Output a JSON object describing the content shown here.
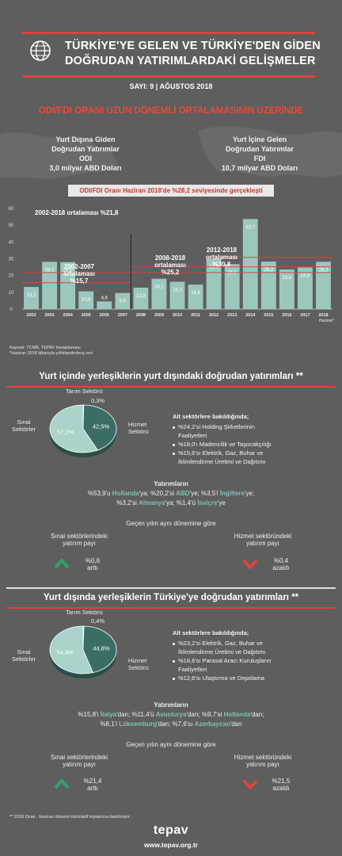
{
  "header": {
    "title_line1": "TÜRKİYE'YE GELEN VE TÜRKİYE'DEN GİDEN",
    "title_line2": "DOĞRUDAN YATIRIMLARDAKİ GELİŞMELER",
    "issue": "SAYI: 9 | AĞUSTOS 2018"
  },
  "intro": {
    "headline": "ODI/FDI ORANI UZUN DÖNEMLİ ORTALAMASININ ÜZERİNDE",
    "odi": [
      "Yurt Dışına Giden",
      "Doğrudan Yatırımlar",
      "ODI",
      "3,0 milyar ABD Doları"
    ],
    "fdi": [
      "Yurt İçine Gelen",
      "Doğrudan Yatırımlar",
      "FDI",
      "10,7 milyar ABD Doları"
    ],
    "ratio_banner": "ODI/FDI Oranı Haziran 2018'de %28,2 seviyesinde gerçekleşti"
  },
  "chart_data": {
    "type": "bar",
    "categories": [
      "2002",
      "2003",
      "2004",
      "2005",
      "2006",
      "2007",
      "2008",
      "2009",
      "2010",
      "2011",
      "2012",
      "2013",
      "2014",
      "2015",
      "2016",
      "2017",
      "2018"
    ],
    "values": [
      13.2,
      28.2,
      28.0,
      10.6,
      4.6,
      9.6,
      12.8,
      18.1,
      16.3,
      14.6,
      29.9,
      26.8,
      53.7,
      28.3,
      23.6,
      24.8,
      28.2
    ],
    "value_labels": [
      "13,2",
      "28,2",
      "28,0",
      "10,6",
      "4,6",
      "9,6",
      "12,8",
      "18,1",
      "16,3",
      "14,6",
      "29,9",
      "26,8",
      "53,7",
      "28,3",
      "23,6",
      "24,8",
      "28,2"
    ],
    "last_category_note": "Haziran*",
    "yticks": [
      "0",
      "10",
      "20",
      "30",
      "40",
      "50",
      "60"
    ],
    "ylim": [
      0,
      60
    ],
    "bar_color": "#9cc7bf",
    "avg_color": "#d9463c",
    "averages": [
      {
        "label": "2002-2018 ortalaması %21,8",
        "value": 21.8,
        "from": 0,
        "to": 16
      },
      {
        "label_line1": "2002-2007",
        "label_line2": "ortalaması",
        "label_line3": "%15,7",
        "value": 15.7,
        "from": 0,
        "to": 5
      },
      {
        "label_line1": "2008-2018",
        "label_line2": "ortalaması",
        "label_line3": "%25,2",
        "value": 25.2,
        "from": 6,
        "to": 16
      },
      {
        "label_line1": "2012-2018",
        "label_line2": "ortalaması",
        "label_line3": "%30,8",
        "value": 30.8,
        "from": 10,
        "to": 16
      }
    ],
    "source": "Kaynak: TCMB, TEPAV hesaplaması",
    "note": "*Haziran 2018 itibarıyla yıllıklandırılmış veri"
  },
  "outward": {
    "title": "Yurt içinde yerleşiklerin yurt dışındaki doğrudan yatırımları **",
    "pie": {
      "slices": [
        {
          "name": "Tarım Sektörü",
          "value": 0.3,
          "label": "0,3%",
          "color": "#7fc0b6"
        },
        {
          "name": "Sınai Sektörler",
          "value": 42.5,
          "label": "42,5%",
          "color": "#3a6d66"
        },
        {
          "name": "Hizmet Sektörü",
          "value": 57.2,
          "label": "57,2%",
          "color": "#a9d3cb"
        }
      ]
    },
    "sub_title": "Alt sektörlere bakıldığında;",
    "bullets": [
      "%24,2'si Holding Şirketlerinin",
      "Faaliyetleri",
      "%18,0'ı Madencilik ve Taşocakçılığı",
      "%15,6'sı Elektrik, Gaz, Buhar ve",
      "İklimlendirme Üretimi ve Dağıtımı"
    ],
    "inv_title": "Yatırımların",
    "inv_line1": [
      "%53,9'u ",
      "Hollanda",
      "'ya; %20,2'si ",
      "ABD",
      "'ye; %3,5'i ",
      "İngiltere",
      "'ye;"
    ],
    "inv_line2": [
      "%3,2'si ",
      "Almanya",
      "'ya; %1,4'ü ",
      "İsviçre",
      "'ye"
    ],
    "compare": "Geçen yılın aynı dönemine göre",
    "left_label": [
      "Sınai sektörlerindeki",
      "yatırım payı"
    ],
    "right_label": [
      "Hizmet sektöründeki",
      "yatırım payı"
    ],
    "left_value": [
      "%0,6",
      "arttı"
    ],
    "right_value": [
      "%0,4",
      "azaldı"
    ]
  },
  "inward": {
    "title": "Yurt dışında yerleşiklerin Türkiye'ye doğrudan yatırımları **",
    "pie": {
      "slices": [
        {
          "name": "Tarım Sektörü",
          "value": 0.4,
          "label": "0,4%",
          "color": "#7fc0b6"
        },
        {
          "name": "Sınai Sektörler",
          "value": 44.8,
          "label": "44,8%",
          "color": "#3a6d66"
        },
        {
          "name": "Hizmet Sektörü",
          "value": 54.8,
          "label": "54,8%",
          "color": "#a9d3cb"
        }
      ]
    },
    "sub_title": "Alt sektörlere bakıldığında;",
    "bullets": [
      "%23,2'si Elektrik, Gaz, Buhar ve",
      "İklimlendirme Üretimi ve Dağıtımı",
      "%18,6'sı Parasal Aracı Kuruluşların",
      "Faaliyetleri",
      "%12,6'sı Ulaştırma ve Depolama"
    ],
    "inv_title": "Yatırımların",
    "inv_line1": [
      "%15,8'i ",
      "İtalya",
      "'dan; %11,4'ü ",
      "Avusturya",
      "'dan; %9,7'si ",
      "Hollanda",
      "'dan;"
    ],
    "inv_line2": [
      "%8,1'i ",
      "Lüksemburg",
      "'dan; %7,6'sı ",
      "Azerbaycan",
      "'dan"
    ],
    "compare": "Geçen yılın aynı dönemine göre",
    "left_label": [
      "Sınai sektörlerindeki",
      "yatırım payı"
    ],
    "right_label": [
      "Hizmet sektöründeki",
      "yatırım payı"
    ],
    "left_value": [
      "%21,4",
      "arttı"
    ],
    "right_value": [
      "%21,5",
      "azaldı"
    ]
  },
  "footer": {
    "footnote": "** 2018 Ocak - Haziran dönemi kümülatif toplamına bakılmıştır.",
    "logo": "tepav",
    "url": "www.tepav.org.tr"
  },
  "colors": {
    "accent": "#d9463c",
    "teal": "#7fc0b6",
    "bg": "#5e5e5e"
  }
}
